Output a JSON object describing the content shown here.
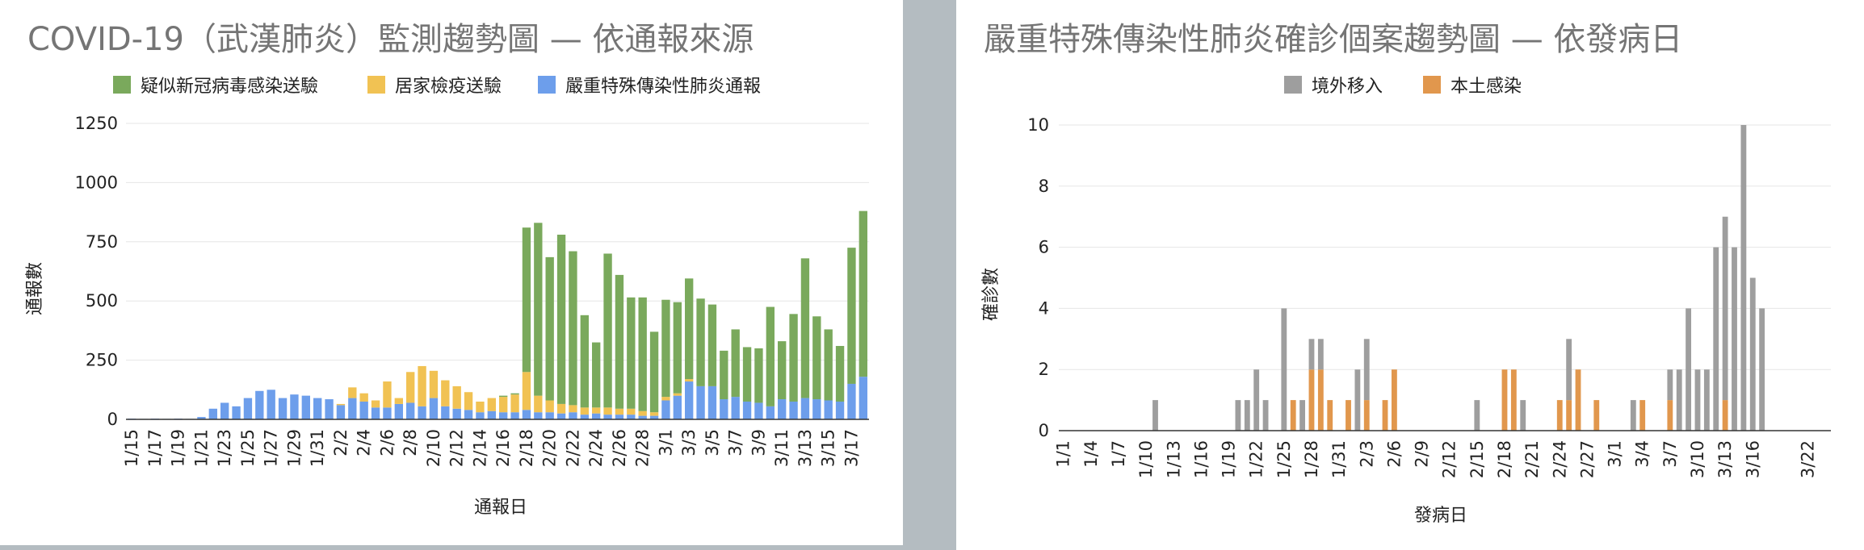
{
  "chart_data": [
    {
      "type": "bar",
      "stacked": true,
      "title": "COVID-19（武漢肺炎）監測趨勢圖 — 依通報來源",
      "xlabel": "通報日",
      "ylabel": "通報數",
      "ylim": [
        0,
        1250
      ],
      "yticks": [
        0,
        250,
        500,
        750,
        1000,
        1250
      ],
      "grid": true,
      "legend": "top",
      "x_labels": [
        "1/15",
        "1/17",
        "1/19",
        "1/21",
        "1/23",
        "1/25",
        "1/27",
        "1/29",
        "1/31",
        "2/2",
        "2/4",
        "2/6",
        "2/8",
        "2/10",
        "2/12",
        "2/14",
        "2/16",
        "2/18",
        "2/20",
        "2/22",
        "2/24",
        "2/26",
        "2/28",
        "3/1",
        "3/3",
        "3/5",
        "3/7",
        "3/9",
        "3/11",
        "3/13",
        "3/15",
        "3/17"
      ],
      "categories": [
        "1/15",
        "1/16",
        "1/17",
        "1/18",
        "1/19",
        "1/20",
        "1/21",
        "1/22",
        "1/23",
        "1/24",
        "1/25",
        "1/26",
        "1/27",
        "1/28",
        "1/29",
        "1/30",
        "1/31",
        "2/1",
        "2/2",
        "2/3",
        "2/4",
        "2/5",
        "2/6",
        "2/7",
        "2/8",
        "2/9",
        "2/10",
        "2/11",
        "2/12",
        "2/13",
        "2/14",
        "2/15",
        "2/16",
        "2/17",
        "2/18",
        "2/19",
        "2/20",
        "2/21",
        "2/22",
        "2/23",
        "2/24",
        "2/25",
        "2/26",
        "2/27",
        "2/28",
        "2/29",
        "3/1",
        "3/2",
        "3/3",
        "3/4",
        "3/5",
        "3/6",
        "3/7",
        "3/8",
        "3/9",
        "3/10",
        "3/11",
        "3/12",
        "3/13",
        "3/14",
        "3/15",
        "3/16",
        "3/17",
        "3/18"
      ],
      "series": [
        {
          "name": "嚴重特殊傳染性肺炎通報",
          "color": "#6d9eeb",
          "values": [
            3,
            2,
            3,
            2,
            3,
            2,
            10,
            45,
            70,
            55,
            90,
            120,
            125,
            90,
            105,
            100,
            90,
            85,
            60,
            90,
            75,
            50,
            50,
            65,
            70,
            55,
            90,
            55,
            45,
            40,
            30,
            35,
            30,
            30,
            40,
            30,
            30,
            25,
            30,
            20,
            25,
            20,
            20,
            20,
            15,
            15,
            80,
            100,
            160,
            140,
            140,
            85,
            95,
            75,
            70,
            55,
            85,
            75,
            90,
            85,
            80,
            75,
            150,
            180
          ]
        },
        {
          "name": "居家檢疫送驗",
          "color": "#f1c253",
          "values": [
            0,
            0,
            0,
            0,
            0,
            0,
            0,
            0,
            0,
            0,
            0,
            0,
            0,
            0,
            0,
            0,
            0,
            0,
            5,
            45,
            35,
            30,
            110,
            25,
            130,
            170,
            115,
            110,
            95,
            75,
            45,
            55,
            65,
            75,
            160,
            70,
            50,
            40,
            30,
            30,
            25,
            30,
            25,
            25,
            20,
            15,
            15,
            10,
            10,
            0,
            0,
            0,
            0,
            0,
            0,
            0,
            0,
            0,
            0,
            0,
            0,
            0,
            0,
            0
          ]
        },
        {
          "name": "疑似新冠病毒感染送驗",
          "color": "#7aa95c",
          "values": [
            0,
            0,
            0,
            0,
            0,
            0,
            0,
            0,
            0,
            0,
            0,
            0,
            0,
            0,
            0,
            0,
            0,
            0,
            0,
            0,
            0,
            0,
            0,
            0,
            0,
            0,
            0,
            0,
            0,
            0,
            0,
            0,
            5,
            5,
            610,
            730,
            605,
            715,
            650,
            390,
            275,
            650,
            565,
            470,
            480,
            340,
            410,
            385,
            425,
            370,
            345,
            205,
            285,
            230,
            230,
            420,
            245,
            370,
            590,
            350,
            300,
            235,
            575,
            700
          ]
        }
      ]
    },
    {
      "type": "bar",
      "stacked": true,
      "title": "嚴重特殊傳染性肺炎確診個案趨勢圖 — 依發病日",
      "xlabel": "發病日",
      "ylabel": "確診數",
      "ylim": [
        0,
        10
      ],
      "yticks": [
        0,
        2,
        4,
        6,
        8,
        10
      ],
      "grid": true,
      "legend": "top",
      "x_labels": [
        "1/1",
        "1/4",
        "1/7",
        "1/10",
        "1/13",
        "1/16",
        "1/19",
        "1/22",
        "1/25",
        "1/28",
        "1/31",
        "2/3",
        "2/6",
        "2/9",
        "2/12",
        "2/15",
        "2/18",
        "2/21",
        "2/24",
        "2/27",
        "3/1",
        "3/4",
        "3/7",
        "3/10",
        "3/13",
        "3/16",
        "3/22"
      ],
      "categories": [
        "1/1",
        "1/2",
        "1/3",
        "1/4",
        "1/5",
        "1/6",
        "1/7",
        "1/8",
        "1/9",
        "1/10",
        "1/11",
        "1/12",
        "1/13",
        "1/14",
        "1/15",
        "1/16",
        "1/17",
        "1/18",
        "1/19",
        "1/20",
        "1/21",
        "1/22",
        "1/23",
        "1/24",
        "1/25",
        "1/26",
        "1/27",
        "1/28",
        "1/29",
        "1/30",
        "1/31",
        "2/1",
        "2/2",
        "2/3",
        "2/4",
        "2/5",
        "2/6",
        "2/7",
        "2/8",
        "2/9",
        "2/10",
        "2/11",
        "2/12",
        "2/13",
        "2/14",
        "2/15",
        "2/16",
        "2/17",
        "2/18",
        "2/19",
        "2/20",
        "2/21",
        "2/22",
        "2/23",
        "2/24",
        "2/25",
        "2/26",
        "2/27",
        "2/28",
        "2/29",
        "3/1",
        "3/2",
        "3/3",
        "3/4",
        "3/5",
        "3/6",
        "3/7",
        "3/8",
        "3/9",
        "3/10",
        "3/11",
        "3/12",
        "3/13",
        "3/14",
        "3/15",
        "3/16",
        "3/17",
        "3/18",
        "3/19",
        "3/20",
        "3/21",
        "3/22",
        "3/23",
        "3/24"
      ],
      "series": [
        {
          "name": "本土感染",
          "color": "#e1974d",
          "values": [
            0,
            0,
            0,
            0,
            0,
            0,
            0,
            0,
            0,
            0,
            0,
            0,
            0,
            0,
            0,
            0,
            0,
            0,
            0,
            0,
            0,
            0,
            0,
            0,
            0,
            1,
            0,
            2,
            2,
            1,
            0,
            1,
            0,
            1,
            0,
            1,
            2,
            0,
            0,
            0,
            0,
            0,
            0,
            0,
            0,
            0,
            0,
            0,
            2,
            2,
            0,
            0,
            0,
            0,
            1,
            1,
            2,
            0,
            1,
            0,
            0,
            0,
            0,
            1,
            0,
            0,
            1,
            0,
            0,
            0,
            0,
            0,
            1,
            0,
            0,
            0,
            0,
            0,
            0,
            0,
            0,
            0,
            0,
            0
          ]
        },
        {
          "name": "境外移入",
          "color": "#9e9e9e",
          "values": [
            0,
            0,
            0,
            0,
            0,
            0,
            0,
            0,
            0,
            0,
            1,
            0,
            0,
            0,
            0,
            0,
            0,
            0,
            0,
            1,
            1,
            2,
            1,
            0,
            4,
            0,
            1,
            1,
            1,
            0,
            0,
            0,
            2,
            2,
            0,
            0,
            0,
            0,
            0,
            0,
            0,
            0,
            0,
            0,
            0,
            1,
            0,
            0,
            0,
            0,
            1,
            0,
            0,
            0,
            0,
            2,
            0,
            0,
            0,
            0,
            0,
            0,
            1,
            0,
            0,
            0,
            1,
            2,
            4,
            2,
            2,
            6,
            6,
            6,
            10,
            5,
            4,
            0,
            0,
            0,
            0,
            0,
            0,
            0
          ]
        }
      ]
    }
  ]
}
